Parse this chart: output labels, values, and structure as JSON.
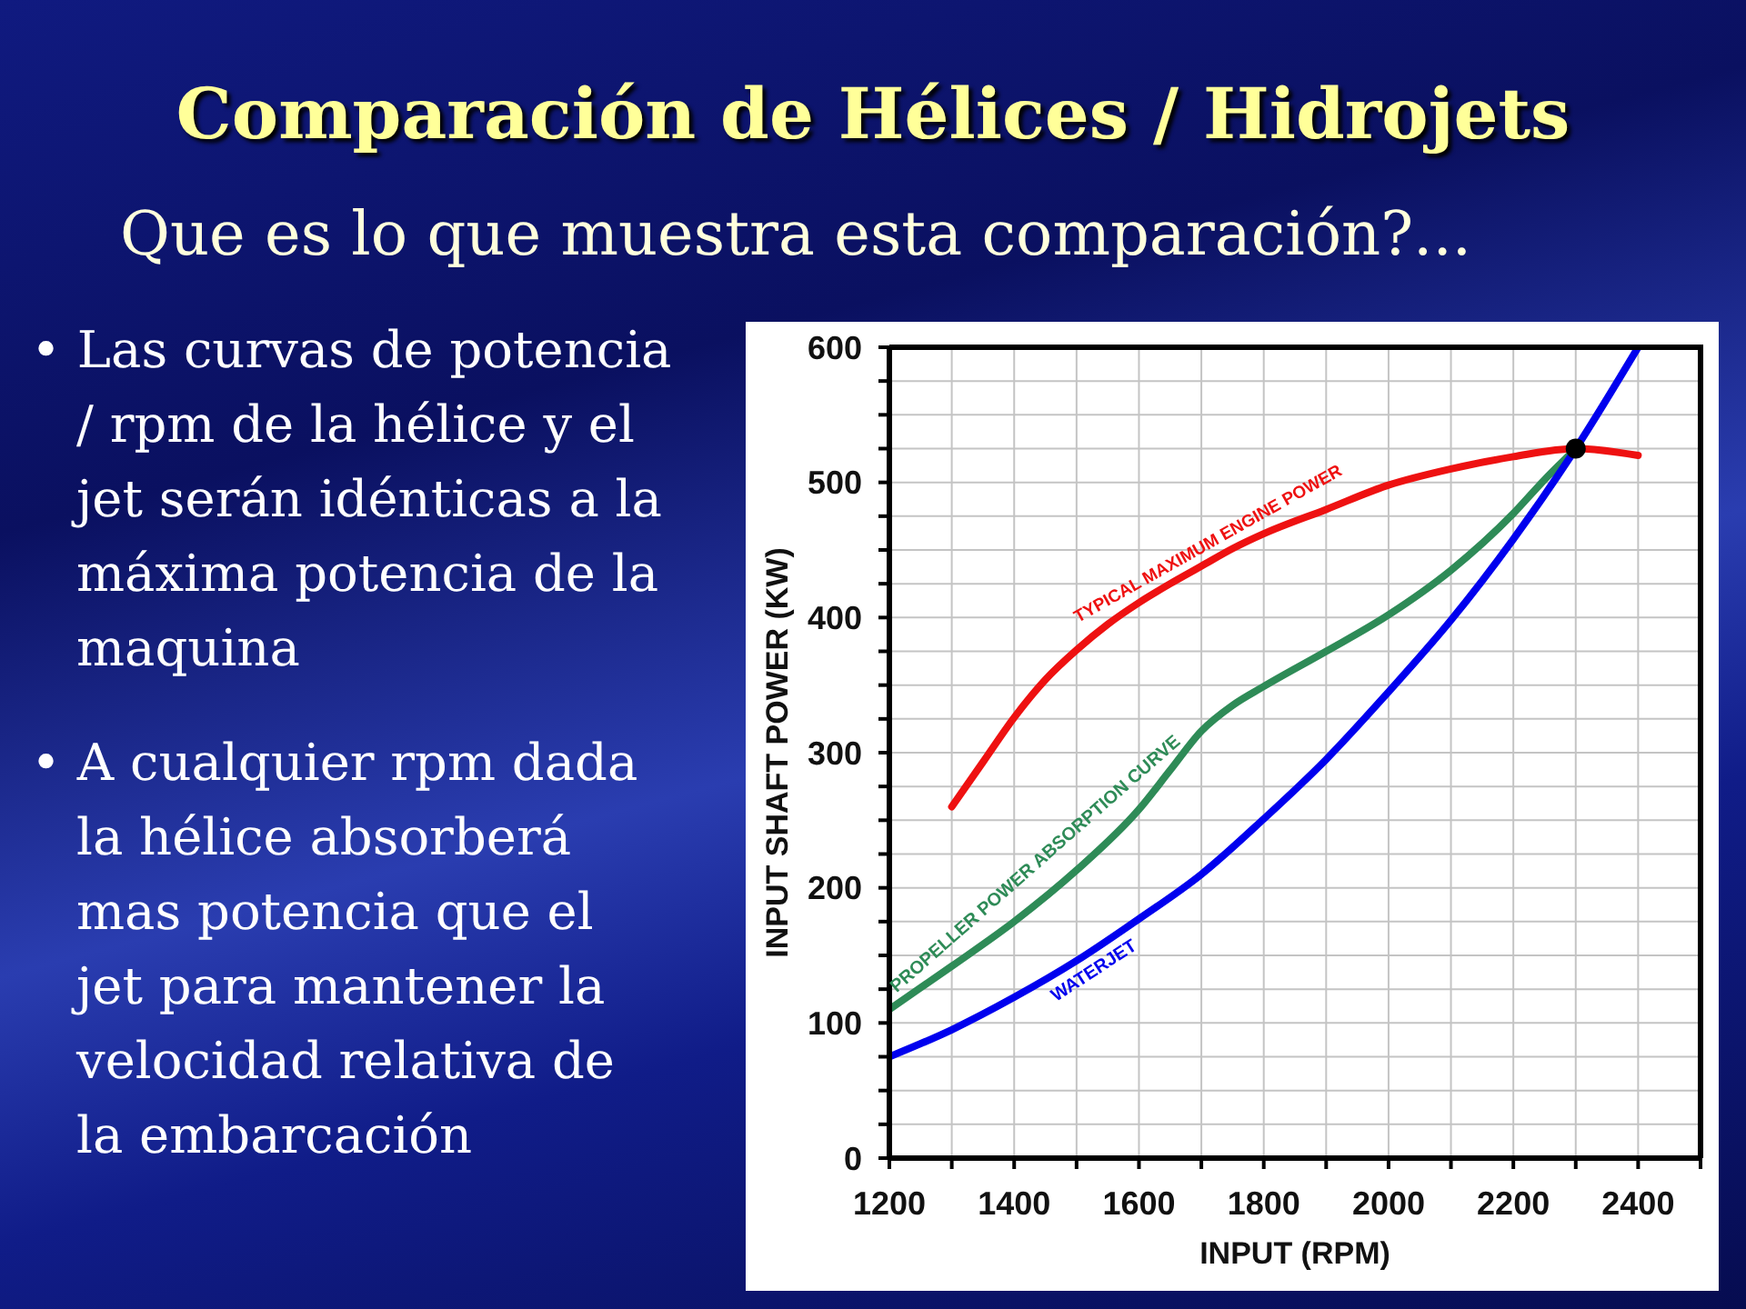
{
  "chart_data": {
    "type": "line",
    "title": "Comparación de Hélices / Hidrojets",
    "subtitle": "Que es lo que muestra esta comparación?...",
    "xlabel": "INPUT (RPM)",
    "ylabel": "INPUT SHAFT POWER (KW)",
    "annotations": [
      "• Las curvas de potencia / rpm de la hélice y el jet serán idénticas a la máxima potencia de la maquina",
      "• A cualquier rpm dada la hélice absorberá mas potencia que el jet para mantener la velocidad relativa de la embarcación"
    ],
    "xlim": [
      1200,
      2500
    ],
    "xticks": [
      1200,
      {
        "value": 1300,
        "label": null
      },
      1400,
      {
        "value": 1500,
        "label": null
      },
      1600,
      {
        "value": 1700,
        "label": null
      },
      1800,
      {
        "value": 1900,
        "label": null
      },
      2000,
      {
        "value": 2100,
        "label": null
      },
      2200,
      {
        "value": 2300,
        "label": null
      },
      2400,
      {
        "value": 2500,
        "label": null
      }
    ],
    "ylim": [
      0,
      600
    ],
    "yticks": [
      0,
      {
        "value": 25,
        "label": null
      },
      {
        "value": 50,
        "label": null
      },
      {
        "value": 75,
        "label": null
      },
      100,
      {
        "value": 125,
        "label": null
      },
      {
        "value": 150,
        "label": null
      },
      {
        "value": 175,
        "label": null
      },
      200,
      {
        "value": 225,
        "label": null
      },
      {
        "value": 250,
        "label": null
      },
      {
        "value": 275,
        "label": null
      },
      300,
      {
        "value": 325,
        "label": null
      },
      {
        "value": 350,
        "label": null
      },
      {
        "value": 375,
        "label": null
      },
      400,
      {
        "value": 425,
        "label": null
      },
      {
        "value": 450,
        "label": null
      },
      {
        "value": 475,
        "label": null
      },
      500,
      {
        "value": 525,
        "label": null
      },
      {
        "value": 550,
        "label": null
      },
      {
        "value": 575,
        "label": null
      },
      600
    ],
    "grid": true,
    "marker": "none",
    "series": [
      {
        "name": "TYPICAL MAXIMUM ENGINE POWER",
        "color": "#ee1111",
        "x": [
          1300,
          1350,
          1400,
          1450,
          1500,
          1550,
          1600,
          1650,
          1700,
          1750,
          1800,
          1900,
          2000,
          2100,
          2200,
          2300,
          2400
        ],
        "values": [
          260,
          293,
          326,
          354,
          376,
          395,
          411,
          425,
          438,
          451,
          462,
          480,
          498,
          510,
          519,
          525,
          520
        ]
      },
      {
        "name": "PROPELLER POWER ABSORPTION CURVE",
        "color": "#2e8b57",
        "x": [
          1200,
          1300,
          1400,
          1500,
          1600,
          1650,
          1700,
          1750,
          1800,
          1900,
          2000,
          2100,
          2200,
          2250,
          2300
        ],
        "values": [
          110,
          142,
          175,
          213,
          258,
          287,
          316,
          335,
          349,
          375,
          402,
          435,
          477,
          502,
          525
        ]
      },
      {
        "name": "WATERJET",
        "color": "#0000ee",
        "x": [
          1200,
          1300,
          1400,
          1500,
          1600,
          1700,
          1800,
          1900,
          2000,
          2100,
          2200,
          2300,
          2400
        ],
        "values": [
          75,
          95,
          119,
          146,
          177,
          210,
          251,
          295,
          345,
          398,
          458,
          525,
          600
        ]
      },
      {
        "type": "scatter",
        "color": "#000000",
        "marker": "circle",
        "x": [
          2300
        ],
        "values": [
          525
        ]
      }
    ]
  }
}
